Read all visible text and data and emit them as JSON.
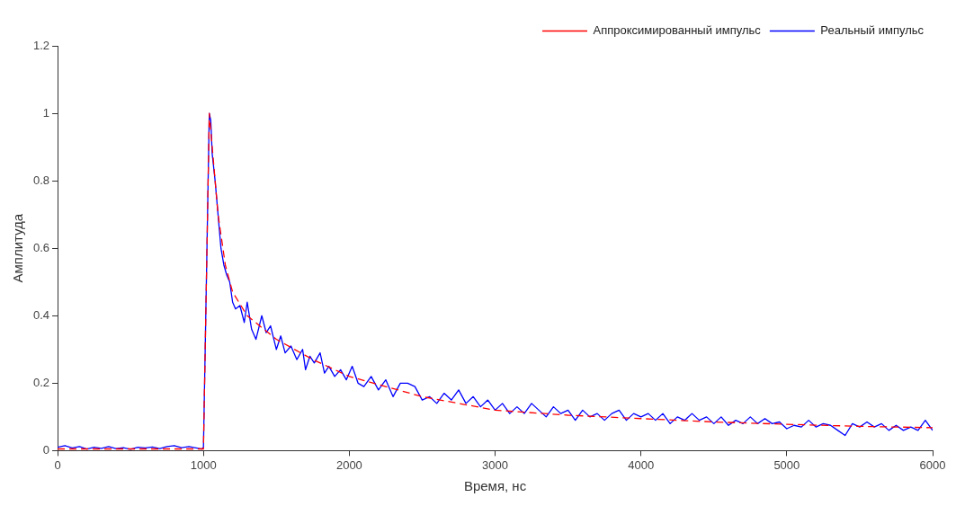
{
  "chart_data": {
    "type": "line",
    "xlabel": "Время, нс",
    "ylabel": "Амплитуда",
    "xlim": [
      0,
      6000
    ],
    "xticks": [
      0,
      1000,
      2000,
      3000,
      4000,
      5000,
      6000
    ],
    "ylim": [
      0,
      1.2
    ],
    "yticks": [
      0,
      0.2,
      0.4,
      0.6,
      0.8,
      1,
      1.2
    ],
    "grid": false,
    "legend": "top right",
    "marker": "none",
    "series": [
      {
        "name": "Реальный импульс",
        "color": "#0000ff",
        "line_style": "solid",
        "x": [
          0,
          50,
          100,
          150,
          200,
          250,
          300,
          350,
          400,
          450,
          500,
          550,
          600,
          650,
          700,
          750,
          800,
          850,
          900,
          950,
          990,
          1000,
          1020,
          1040,
          1050,
          1060,
          1080,
          1100,
          1120,
          1140,
          1160,
          1180,
          1200,
          1220,
          1250,
          1280,
          1300,
          1330,
          1360,
          1400,
          1430,
          1460,
          1500,
          1530,
          1560,
          1600,
          1640,
          1680,
          1700,
          1730,
          1760,
          1800,
          1830,
          1860,
          1900,
          1940,
          1980,
          2020,
          2060,
          2100,
          2150,
          2200,
          2250,
          2300,
          2350,
          2400,
          2450,
          2500,
          2550,
          2600,
          2650,
          2700,
          2750,
          2800,
          2850,
          2900,
          2950,
          3000,
          3050,
          3100,
          3150,
          3200,
          3250,
          3300,
          3350,
          3400,
          3450,
          3500,
          3550,
          3600,
          3650,
          3700,
          3750,
          3800,
          3850,
          3900,
          3950,
          4000,
          4050,
          4100,
          4150,
          4200,
          4250,
          4300,
          4350,
          4400,
          4450,
          4500,
          4550,
          4600,
          4650,
          4700,
          4750,
          4800,
          4850,
          4900,
          4950,
          5000,
          5050,
          5100,
          5150,
          5200,
          5250,
          5300,
          5350,
          5400,
          5450,
          5500,
          5550,
          5600,
          5650,
          5700,
          5750,
          5800,
          5850,
          5900,
          5950,
          6000
        ],
        "values": [
          0.01,
          0.015,
          0.008,
          0.012,
          0.005,
          0.01,
          0.007,
          0.012,
          0.006,
          0.009,
          0.004,
          0.01,
          0.008,
          0.011,
          0.006,
          0.012,
          0.015,
          0.009,
          0.012,
          0.008,
          0.005,
          0.01,
          0.5,
          1.0,
          0.98,
          0.88,
          0.8,
          0.7,
          0.6,
          0.55,
          0.52,
          0.5,
          0.44,
          0.42,
          0.43,
          0.38,
          0.44,
          0.36,
          0.33,
          0.4,
          0.35,
          0.37,
          0.3,
          0.34,
          0.29,
          0.31,
          0.27,
          0.3,
          0.24,
          0.28,
          0.26,
          0.29,
          0.23,
          0.25,
          0.22,
          0.24,
          0.21,
          0.25,
          0.2,
          0.19,
          0.22,
          0.18,
          0.21,
          0.16,
          0.2,
          0.2,
          0.19,
          0.15,
          0.16,
          0.14,
          0.17,
          0.15,
          0.18,
          0.14,
          0.16,
          0.13,
          0.15,
          0.12,
          0.14,
          0.11,
          0.13,
          0.11,
          0.14,
          0.12,
          0.1,
          0.13,
          0.11,
          0.12,
          0.09,
          0.12,
          0.1,
          0.11,
          0.09,
          0.11,
          0.12,
          0.09,
          0.11,
          0.1,
          0.11,
          0.09,
          0.11,
          0.08,
          0.1,
          0.09,
          0.11,
          0.09,
          0.1,
          0.08,
          0.1,
          0.075,
          0.09,
          0.08,
          0.1,
          0.08,
          0.095,
          0.08,
          0.085,
          0.065,
          0.075,
          0.07,
          0.09,
          0.07,
          0.08,
          0.075,
          0.06,
          0.045,
          0.08,
          0.07,
          0.085,
          0.07,
          0.08,
          0.06,
          0.075,
          0.06,
          0.07,
          0.06,
          0.09,
          0.06
        ]
      },
      {
        "name": "Аппроксимированный импульс",
        "color": "#ff0000",
        "line_style": "dashed",
        "x": [
          0,
          500,
          1000,
          1020,
          1040,
          1060,
          1100,
          1150,
          1200,
          1300,
          1500,
          1750,
          2000,
          2500,
          3000,
          3500,
          4000,
          4500,
          5000,
          5500,
          6000
        ],
        "values": [
          0.005,
          0.005,
          0.005,
          0.5,
          1.0,
          0.9,
          0.7,
          0.55,
          0.47,
          0.4,
          0.33,
          0.27,
          0.22,
          0.16,
          0.12,
          0.105,
          0.095,
          0.085,
          0.078,
          0.072,
          0.068
        ]
      }
    ]
  }
}
